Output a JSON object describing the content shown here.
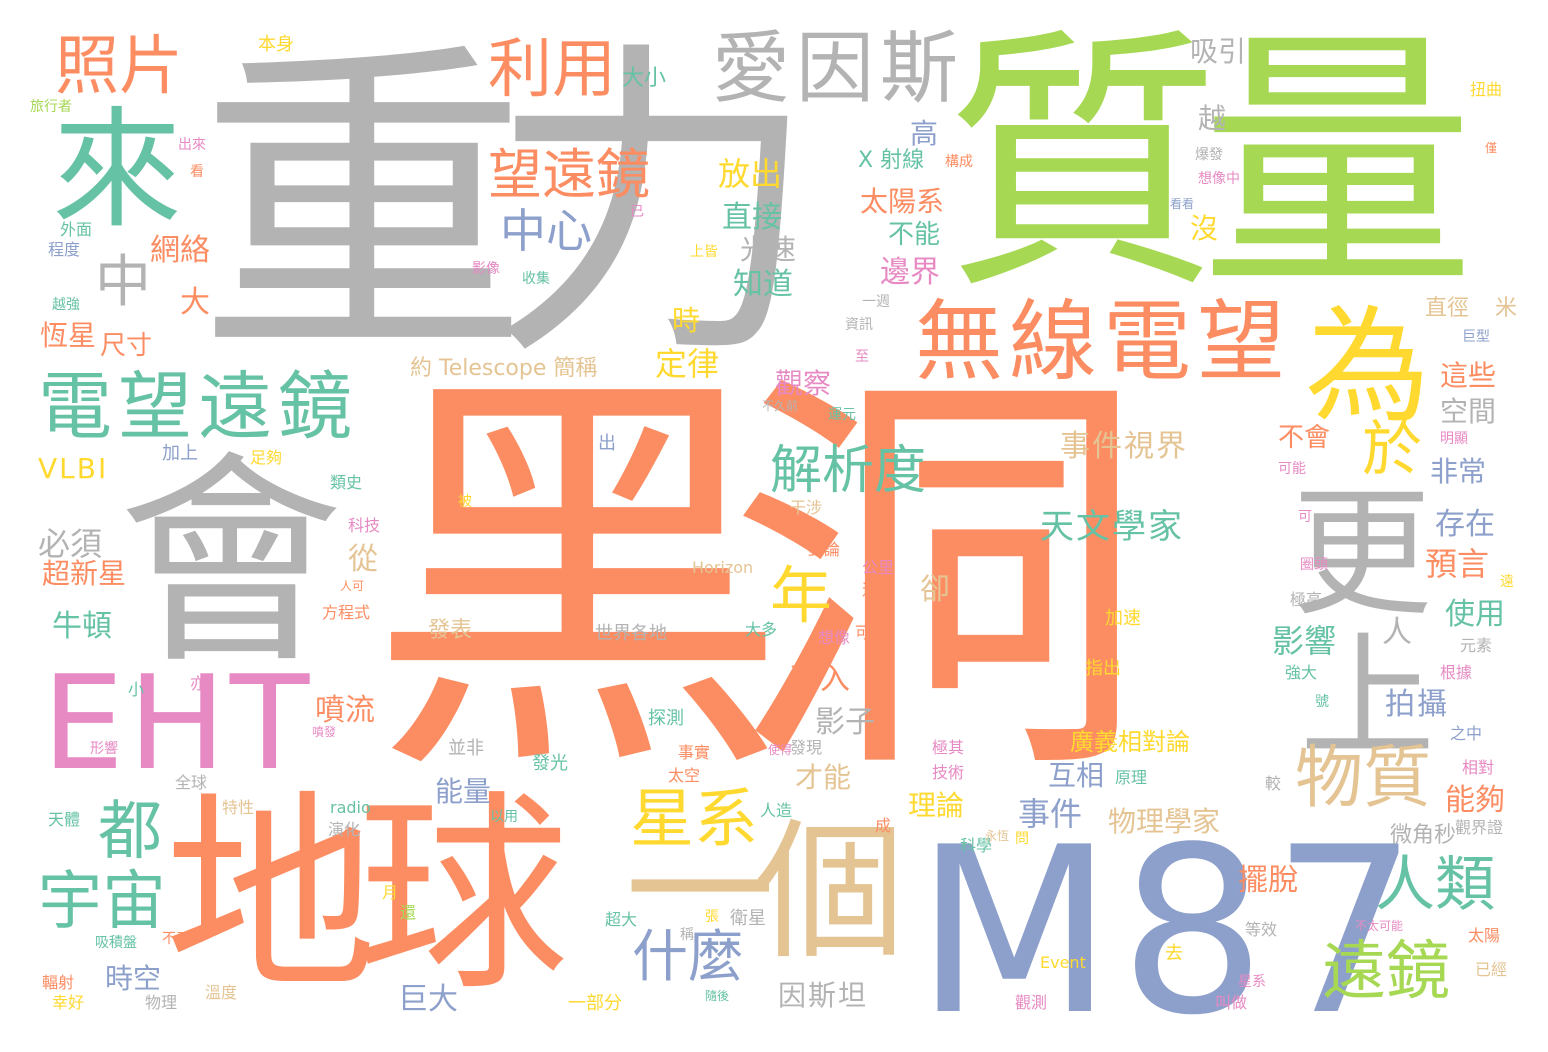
{
  "palette": {
    "gray": "#b3b3b3",
    "orange": "#fc8d62",
    "green": "#a6d854",
    "teal": "#66c2a5",
    "blue": "#8da0cb",
    "pink": "#e78ac3",
    "yellow": "#ffd92f",
    "tan": "#e5c494"
  },
  "words": [
    {
      "text": "黑洞",
      "color": "orange"
    },
    {
      "text": "重力",
      "color": "gray"
    },
    {
      "text": "質量",
      "color": "green"
    },
    {
      "text": "M87",
      "color": "blue"
    },
    {
      "text": "地球",
      "color": "orange"
    },
    {
      "text": "會",
      "color": "gray"
    },
    {
      "text": "EHT",
      "color": "pink"
    },
    {
      "text": "一個",
      "color": "tan"
    },
    {
      "text": "更",
      "color": "gray"
    },
    {
      "text": "上",
      "color": "gray"
    },
    {
      "text": "為",
      "color": "yellow"
    },
    {
      "text": "來",
      "color": "teal"
    },
    {
      "text": "愛因斯",
      "color": "gray"
    },
    {
      "text": "電望遠鏡",
      "color": "teal"
    },
    {
      "text": "無線電望",
      "color": "orange"
    },
    {
      "text": "照片",
      "color": "orange"
    },
    {
      "text": "利用",
      "color": "orange"
    },
    {
      "text": "望遠鏡",
      "color": "orange"
    },
    {
      "text": "物質",
      "color": "tan"
    },
    {
      "text": "星系",
      "color": "yellow"
    },
    {
      "text": "人類",
      "color": "teal"
    },
    {
      "text": "遠鏡",
      "color": "green"
    },
    {
      "text": "宇宙",
      "color": "teal"
    },
    {
      "text": "解析度",
      "color": "teal"
    },
    {
      "text": "中心",
      "color": "blue"
    },
    {
      "text": "中",
      "color": "gray"
    },
    {
      "text": "都",
      "color": "teal"
    },
    {
      "text": "年",
      "color": "yellow"
    },
    {
      "text": "於",
      "color": "yellow"
    },
    {
      "text": "什麼",
      "color": "blue"
    },
    {
      "text": "天文學家",
      "color": "teal"
    },
    {
      "text": "事件視界",
      "color": "tan"
    },
    {
      "text": "放出",
      "color": "yellow"
    },
    {
      "text": "直接",
      "color": "teal"
    },
    {
      "text": "太陽系",
      "color": "orange"
    },
    {
      "text": "網絡",
      "color": "orange"
    },
    {
      "text": "光速",
      "color": "gray"
    },
    {
      "text": "知道",
      "color": "teal"
    },
    {
      "text": "邊界",
      "color": "pink"
    },
    {
      "text": "尺寸",
      "color": "orange"
    },
    {
      "text": "恆星",
      "color": "orange"
    },
    {
      "text": "時",
      "color": "yellow"
    },
    {
      "text": "定律",
      "color": "yellow"
    },
    {
      "text": "觀察",
      "color": "pink"
    },
    {
      "text": "約 Telescope 簡稱",
      "color": "tan"
    },
    {
      "text": "VLBI",
      "color": "yellow"
    },
    {
      "text": "必須",
      "color": "gray"
    },
    {
      "text": "超新星",
      "color": "orange"
    },
    {
      "text": "牛頓",
      "color": "teal"
    },
    {
      "text": "噴流",
      "color": "orange"
    },
    {
      "text": "從",
      "color": "tan"
    },
    {
      "text": "卻",
      "color": "tan"
    },
    {
      "text": "存在",
      "color": "blue"
    },
    {
      "text": "預言",
      "color": "orange"
    },
    {
      "text": "使用",
      "color": "teal"
    },
    {
      "text": "影響",
      "color": "teal"
    },
    {
      "text": "拍攝",
      "color": "blue"
    },
    {
      "text": "落入",
      "color": "orange"
    },
    {
      "text": "影子",
      "color": "gray"
    },
    {
      "text": "廣義相對論",
      "color": "yellow"
    },
    {
      "text": "互相",
      "color": "blue"
    },
    {
      "text": "事件",
      "color": "blue"
    },
    {
      "text": "物理學家",
      "color": "tan"
    },
    {
      "text": "能量",
      "color": "blue"
    },
    {
      "text": "才能",
      "color": "tan"
    },
    {
      "text": "理論",
      "color": "yellow"
    },
    {
      "text": "能夠",
      "color": "orange"
    },
    {
      "text": "時空",
      "color": "blue"
    },
    {
      "text": "巨大",
      "color": "blue"
    },
    {
      "text": "因斯坦",
      "color": "gray"
    },
    {
      "text": "擺脫",
      "color": "orange"
    },
    {
      "text": "這些",
      "color": "orange"
    },
    {
      "text": "空間",
      "color": "gray"
    },
    {
      "text": "非常",
      "color": "blue"
    },
    {
      "text": "不會",
      "color": "orange"
    },
    {
      "text": "微角秒",
      "color": "gray"
    },
    {
      "text": "直徑",
      "color": "tan"
    },
    {
      "text": "米",
      "color": "tan"
    },
    {
      "text": "吸引",
      "color": "gray"
    },
    {
      "text": "越",
      "color": "gray"
    },
    {
      "text": "高",
      "color": "blue"
    },
    {
      "text": "不能",
      "color": "teal"
    },
    {
      "text": "沒",
      "color": "yellow"
    },
    {
      "text": "X 射線",
      "color": "teal"
    },
    {
      "text": "大小",
      "color": "teal"
    },
    {
      "text": "本身",
      "color": "yellow"
    },
    {
      "text": "大",
      "color": "orange"
    },
    {
      "text": "人",
      "color": "gray"
    },
    {
      "text": "世界各地",
      "color": "gray"
    },
    {
      "text": "Horizon",
      "color": "tan"
    },
    {
      "text": "發表",
      "color": "tan"
    },
    {
      "text": "Event",
      "color": "yellow"
    },
    {
      "text": "radio",
      "color": "teal"
    },
    {
      "text": "一部分",
      "color": "yellow"
    },
    {
      "text": "衛星",
      "color": "gray"
    },
    {
      "text": "去",
      "color": "yellow"
    },
    {
      "text": "並非",
      "color": "gray"
    },
    {
      "text": "發光",
      "color": "teal"
    },
    {
      "text": "探測",
      "color": "teal"
    },
    {
      "text": "加速",
      "color": "yellow"
    },
    {
      "text": "指出",
      "color": "yellow"
    },
    {
      "text": "太空",
      "color": "orange"
    },
    {
      "text": "事實",
      "color": "orange"
    },
    {
      "text": "極其",
      "color": "pink"
    },
    {
      "text": "技術",
      "color": "pink"
    },
    {
      "text": "原理",
      "color": "teal"
    },
    {
      "text": "發現",
      "color": "gray"
    },
    {
      "text": "人造",
      "color": "teal"
    },
    {
      "text": "以用",
      "color": "teal"
    },
    {
      "text": "成",
      "color": "orange"
    },
    {
      "text": "科學",
      "color": "teal"
    },
    {
      "text": "出",
      "color": "blue"
    },
    {
      "text": "加上",
      "color": "blue"
    },
    {
      "text": "足夠",
      "color": "yellow"
    },
    {
      "text": "類史",
      "color": "teal"
    },
    {
      "text": "科技",
      "color": "pink"
    },
    {
      "text": "干涉",
      "color": "tan"
    },
    {
      "text": "對論",
      "color": "orange"
    },
    {
      "text": "公里",
      "color": "pink"
    },
    {
      "text": "遠很",
      "color": "orange"
    },
    {
      "text": "可見",
      "color": "orange"
    },
    {
      "text": "想像",
      "color": "pink"
    },
    {
      "text": "大多",
      "color": "teal"
    },
    {
      "text": "方程式",
      "color": "orange"
    },
    {
      "text": "人可",
      "color": "orange"
    },
    {
      "text": "強大",
      "color": "teal"
    },
    {
      "text": "根據",
      "color": "pink"
    },
    {
      "text": "元素",
      "color": "gray"
    },
    {
      "text": "之中",
      "color": "blue"
    },
    {
      "text": "相對",
      "color": "pink"
    },
    {
      "text": "觀界證",
      "color": "gray"
    },
    {
      "text": "太陽",
      "color": "orange"
    },
    {
      "text": "已經",
      "color": "tan"
    },
    {
      "text": "叫做",
      "color": "pink"
    },
    {
      "text": "觀測",
      "color": "pink"
    },
    {
      "text": "等效",
      "color": "gray"
    },
    {
      "text": "全球",
      "color": "gray"
    },
    {
      "text": "天體",
      "color": "teal"
    },
    {
      "text": "輻射",
      "color": "orange"
    },
    {
      "text": "幸好",
      "color": "yellow"
    },
    {
      "text": "物理",
      "color": "gray"
    },
    {
      "text": "溫度",
      "color": "tan"
    },
    {
      "text": "演化",
      "color": "gray"
    },
    {
      "text": "特性",
      "color": "tan"
    },
    {
      "text": "吸積盤",
      "color": "teal"
    },
    {
      "text": "不了",
      "color": "orange"
    },
    {
      "text": "超大",
      "color": "teal"
    },
    {
      "text": "月",
      "color": "yellow"
    },
    {
      "text": "還",
      "color": "green"
    },
    {
      "text": "圈頭",
      "color": "pink"
    },
    {
      "text": "極高",
      "color": "gray"
    },
    {
      "text": "可能",
      "color": "pink"
    },
    {
      "text": "明顯",
      "color": "pink"
    },
    {
      "text": "扭曲",
      "color": "yellow"
    },
    {
      "text": "爆發",
      "color": "gray"
    },
    {
      "text": "想像中",
      "color": "pink"
    },
    {
      "text": "構成",
      "color": "orange"
    },
    {
      "text": "程度",
      "color": "blue"
    },
    {
      "text": "外面",
      "color": "teal"
    },
    {
      "text": "影像",
      "color": "pink"
    },
    {
      "text": "收集",
      "color": "teal"
    },
    {
      "text": "上皆",
      "color": "yellow"
    },
    {
      "text": "一週",
      "color": "gray"
    },
    {
      "text": "資訊",
      "color": "gray"
    },
    {
      "text": "至",
      "color": "pink"
    },
    {
      "text": "巨型",
      "color": "blue"
    },
    {
      "text": "運元",
      "color": "teal"
    },
    {
      "text": "不久前",
      "color": "gray"
    },
    {
      "text": "旅行者",
      "color": "green"
    },
    {
      "text": "出來",
      "color": "pink"
    },
    {
      "text": "越強",
      "color": "teal"
    },
    {
      "text": "可",
      "color": "pink"
    },
    {
      "text": "噴發",
      "color": "pink"
    },
    {
      "text": "小",
      "color": "teal"
    },
    {
      "text": "亦",
      "color": "pink"
    },
    {
      "text": "形響",
      "color": "pink"
    },
    {
      "text": "看",
      "color": "orange"
    },
    {
      "text": "已",
      "color": "pink"
    },
    {
      "text": "看看",
      "color": "blue"
    },
    {
      "text": "較",
      "color": "gray"
    },
    {
      "text": "號",
      "color": "teal"
    },
    {
      "text": "問",
      "color": "yellow"
    },
    {
      "text": "永恆",
      "color": "tan"
    },
    {
      "text": "不太可能",
      "color": "pink"
    },
    {
      "text": "張",
      "color": "yellow"
    },
    {
      "text": "僅",
      "color": "orange"
    },
    {
      "text": "稱",
      "color": "gray"
    },
    {
      "text": "星系",
      "color": "pink"
    },
    {
      "text": "隨後",
      "color": "teal"
    },
    {
      "text": "遠",
      "color": "yellow"
    },
    {
      "text": "被",
      "color": "yellow"
    },
    {
      "text": "使得",
      "color": "pink"
    }
  ]
}
